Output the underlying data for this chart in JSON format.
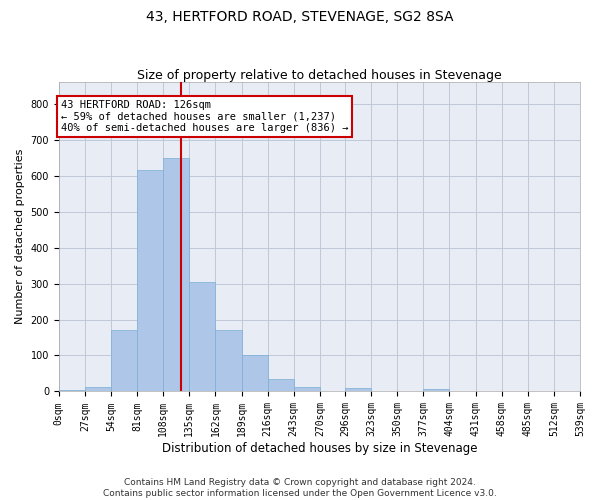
{
  "title1": "43, HERTFORD ROAD, STEVENAGE, SG2 8SA",
  "title2": "Size of property relative to detached houses in Stevenage",
  "xlabel": "Distribution of detached houses by size in Stevenage",
  "ylabel": "Number of detached properties",
  "bar_edges": [
    0,
    27,
    54,
    81,
    108,
    135,
    162,
    189,
    216,
    243,
    270,
    296,
    323,
    350,
    377,
    404,
    431,
    458,
    485,
    512,
    539
  ],
  "bar_heights": [
    5,
    12,
    170,
    615,
    650,
    305,
    170,
    100,
    35,
    12,
    0,
    10,
    0,
    0,
    8,
    0,
    0,
    0,
    0,
    0
  ],
  "bar_color": "#aec6e8",
  "bar_edgecolor": "#7aafd4",
  "property_value": 126,
  "vline_color": "#cc0000",
  "annotation_text": "43 HERTFORD ROAD: 126sqm\n← 59% of detached houses are smaller (1,237)\n40% of semi-detached houses are larger (836) →",
  "annotation_box_color": "#ffffff",
  "annotation_box_edgecolor": "#cc0000",
  "ylim": [
    0,
    860
  ],
  "yticks": [
    0,
    100,
    200,
    300,
    400,
    500,
    600,
    700,
    800
  ],
  "grid_color": "#c0c8d8",
  "bg_color": "#e8edf5",
  "footer": "Contains HM Land Registry data © Crown copyright and database right 2024.\nContains public sector information licensed under the Open Government Licence v3.0.",
  "title_fontsize": 10,
  "subtitle_fontsize": 9,
  "tick_fontsize": 7,
  "ylabel_fontsize": 8,
  "xlabel_fontsize": 8.5,
  "footer_fontsize": 6.5,
  "annot_fontsize": 7.5
}
